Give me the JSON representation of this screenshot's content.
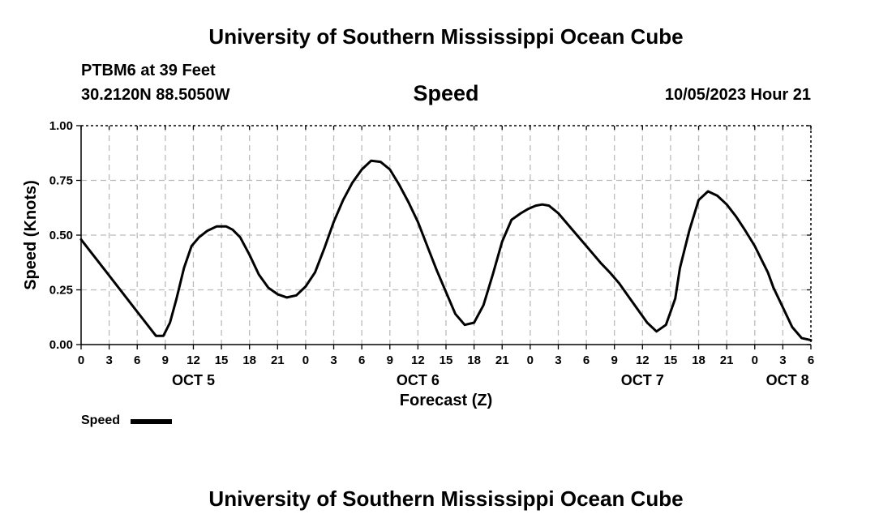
{
  "header": {
    "title": "University of Southern Mississippi Ocean Cube",
    "station": "PTBM6 at 39 Feet",
    "coords": "30.2120N  88.5050W",
    "variable": "Speed",
    "datetime": "10/05/2023 Hour 21"
  },
  "footer": {
    "title": "University of Southern Mississippi Ocean Cube"
  },
  "legend": {
    "label": "Speed",
    "color": "#000000"
  },
  "chart_data": {
    "type": "line",
    "title": "Speed",
    "xlabel": "Forecast (Z)",
    "ylabel": "Speed (Knots)",
    "ylim": [
      0,
      1
    ],
    "xlim": [
      0,
      78
    ],
    "x_unit": "hours since Oct 5 00Z",
    "yticks": [
      0.0,
      0.25,
      0.5,
      0.75,
      1.0
    ],
    "ytick_labels": [
      "0.00",
      "0.25",
      "0.50",
      "0.75",
      "1.00"
    ],
    "xticks": [
      0,
      3,
      6,
      9,
      12,
      15,
      18,
      21,
      24,
      27,
      30,
      33,
      36,
      39,
      42,
      45,
      48,
      51,
      54,
      57,
      60,
      63,
      66,
      69,
      72,
      75,
      78
    ],
    "xtick_labels": [
      "0",
      "3",
      "6",
      "9",
      "12",
      "15",
      "18",
      "21",
      "0",
      "3",
      "6",
      "9",
      "12",
      "15",
      "18",
      "21",
      "0",
      "3",
      "6",
      "9",
      "12",
      "15",
      "18",
      "21",
      "0",
      "3",
      "6"
    ],
    "day_labels": [
      {
        "label": "OCT 5",
        "x": 12
      },
      {
        "label": "OCT 6",
        "x": 36
      },
      {
        "label": "OCT 7",
        "x": 60
      },
      {
        "label": "OCT 8",
        "x": 75.5
      }
    ],
    "grid": true,
    "series": [
      {
        "name": "Speed",
        "color": "#000000",
        "x": [
          0,
          2,
          4,
          6,
          8,
          8.8,
          9.5,
          10.2,
          11,
          11.8,
          12.6,
          13.5,
          14.5,
          15.5,
          16.2,
          17,
          18,
          19,
          20,
          21,
          22,
          23,
          24,
          25,
          26,
          27,
          28,
          29,
          30,
          31,
          32,
          33,
          34,
          35,
          36,
          37,
          38,
          39,
          40,
          41,
          42,
          43,
          44,
          45,
          46,
          47,
          47.8,
          48.6,
          49.3,
          50,
          51,
          52,
          53,
          54,
          54.8,
          55.6,
          56.5,
          57.5,
          58.5,
          59.5,
          60.5,
          61.5,
          62.5,
          63.5,
          64,
          65,
          66,
          67,
          68,
          69,
          70,
          71,
          72,
          72.7,
          73.4,
          74,
          75,
          76,
          77,
          78
        ],
        "y": [
          0.48,
          0.37,
          0.26,
          0.15,
          0.04,
          0.04,
          0.1,
          0.21,
          0.35,
          0.45,
          0.49,
          0.52,
          0.54,
          0.54,
          0.525,
          0.49,
          0.41,
          0.32,
          0.26,
          0.23,
          0.215,
          0.225,
          0.265,
          0.33,
          0.44,
          0.56,
          0.66,
          0.74,
          0.8,
          0.84,
          0.835,
          0.8,
          0.73,
          0.65,
          0.56,
          0.45,
          0.34,
          0.24,
          0.14,
          0.09,
          0.1,
          0.18,
          0.32,
          0.47,
          0.57,
          0.6,
          0.62,
          0.635,
          0.64,
          0.635,
          0.6,
          0.55,
          0.5,
          0.45,
          0.41,
          0.37,
          0.33,
          0.28,
          0.22,
          0.16,
          0.1,
          0.06,
          0.09,
          0.21,
          0.35,
          0.52,
          0.66,
          0.7,
          0.68,
          0.64,
          0.585,
          0.52,
          0.45,
          0.39,
          0.33,
          0.26,
          0.17,
          0.08,
          0.03,
          0.02
        ]
      }
    ]
  }
}
